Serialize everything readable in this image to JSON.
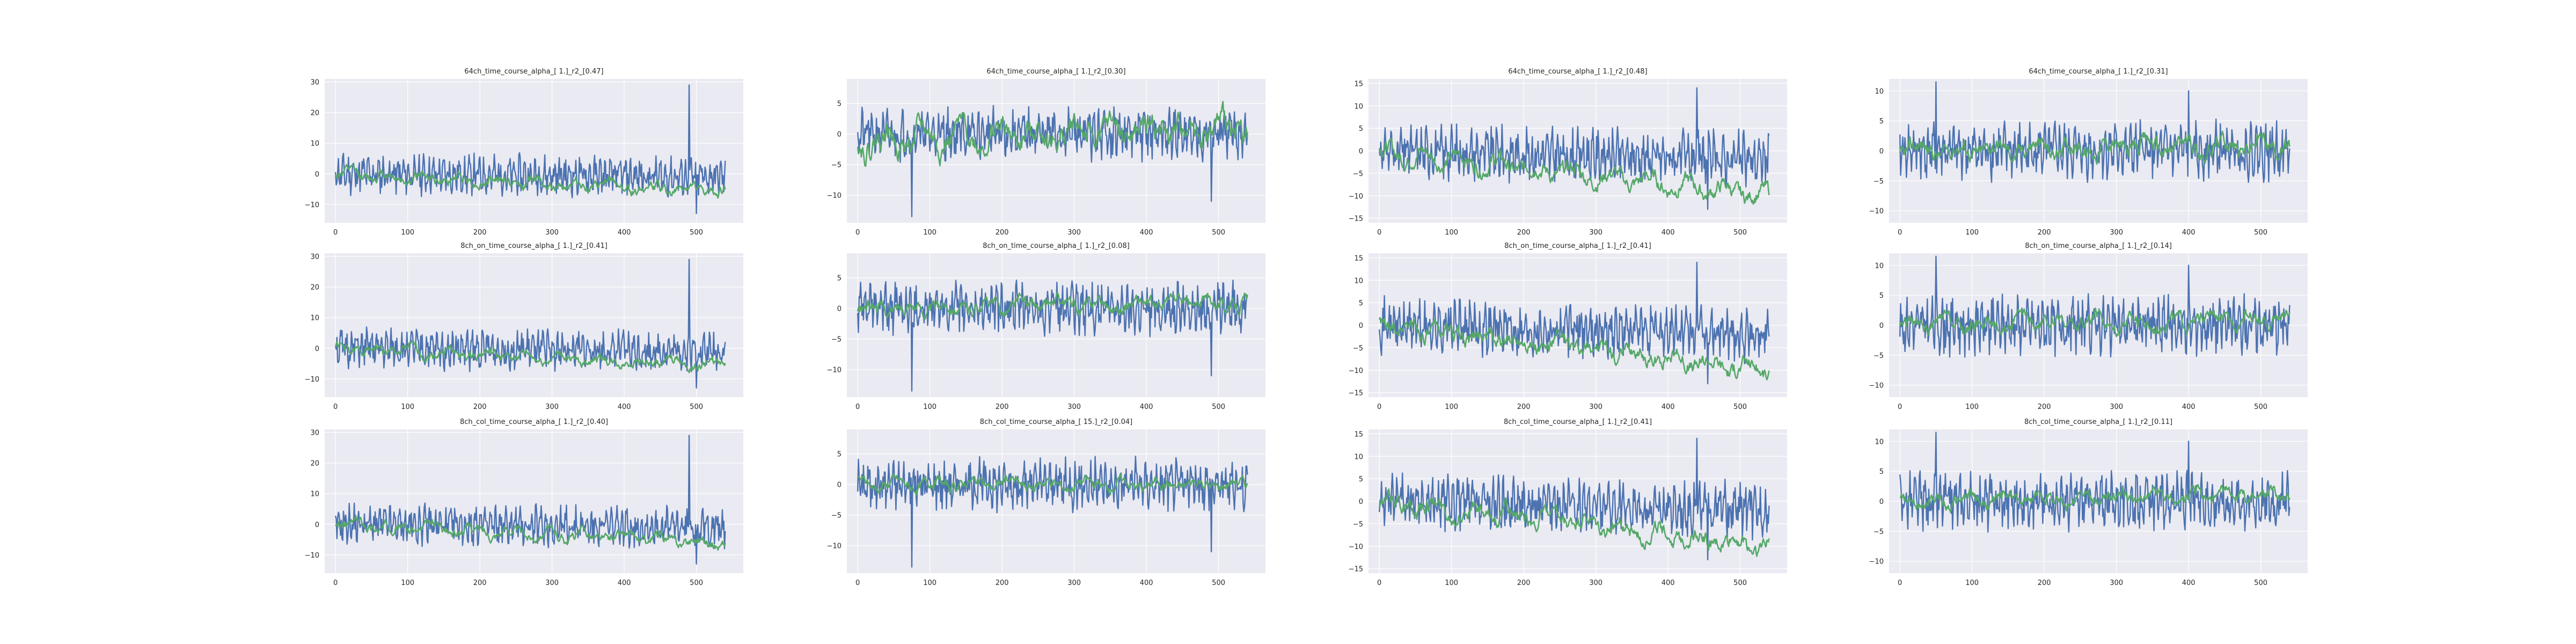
{
  "style": {
    "panel_bg": "#EAEAF2",
    "grid": "#FFFFFF",
    "series_blue": "#4C72B0",
    "series_green": "#55A868",
    "text": "#262626"
  },
  "chart_data": [
    {
      "type": "line",
      "title": "64ch_time_course_alpha_[ 1.]_r2_[0.47]",
      "xlim": [
        -15,
        565
      ],
      "ylim": [
        -16,
        31
      ],
      "xticks": [
        0,
        100,
        200,
        300,
        400,
        500
      ],
      "yticks": [
        -10,
        0,
        10,
        20,
        30
      ],
      "series": [
        {
          "color": "blue",
          "amp": 5.5,
          "trend": [
            0,
            -1
          ],
          "seed": 11,
          "spikes": [
            [
              490,
              29
            ],
            [
              500,
              -13
            ]
          ]
        },
        {
          "color": "green",
          "amp": 1.8,
          "trend": [
            0,
            -6
          ],
          "seed": 12
        }
      ],
      "grid": true
    },
    {
      "type": "line",
      "title": "64ch_time_course_alpha_[ 1.]_r2_[0.30]",
      "xlim": [
        -15,
        565
      ],
      "ylim": [
        -14.5,
        9
      ],
      "xticks": [
        0,
        100,
        200,
        300,
        400,
        500
      ],
      "yticks": [
        -10,
        -5,
        0,
        5
      ],
      "series": [
        {
          "color": "blue",
          "amp": 3.5,
          "trend": [
            0,
            0
          ],
          "seed": 21,
          "spikes": [
            [
              75,
              -13.5
            ],
            [
              490,
              -11
            ]
          ]
        },
        {
          "color": "green",
          "amp": 2.2,
          "trend": [
            -1,
            1
          ],
          "seed": 22
        }
      ],
      "grid": true
    },
    {
      "type": "line",
      "title": "64ch_time_course_alpha_[ 1.]_r2_[0.48]",
      "xlim": [
        -15,
        565
      ],
      "ylim": [
        -16,
        16
      ],
      "xticks": [
        0,
        100,
        200,
        300,
        400,
        500
      ],
      "yticks": [
        -15,
        -10,
        -5,
        0,
        5,
        10,
        15
      ],
      "series": [
        {
          "color": "blue",
          "amp": 5.0,
          "trend": [
            0,
            -2
          ],
          "seed": 31,
          "spikes": [
            [
              440,
              14
            ],
            [
              455,
              -13
            ]
          ]
        },
        {
          "color": "green",
          "amp": 2.0,
          "trend": [
            0,
            -10
          ],
          "seed": 32
        }
      ],
      "grid": true
    },
    {
      "type": "line",
      "title": "64ch_time_course_alpha_[ 1.]_r2_[0.31]",
      "xlim": [
        -15,
        565
      ],
      "ylim": [
        -12,
        12
      ],
      "xticks": [
        0,
        100,
        200,
        300,
        400,
        500
      ],
      "yticks": [
        -10,
        -5,
        0,
        5,
        10
      ],
      "series": [
        {
          "color": "blue",
          "amp": 4.0,
          "trend": [
            0,
            0
          ],
          "seed": 41,
          "spikes": [
            [
              50,
              11.5
            ],
            [
              400,
              10
            ]
          ]
        },
        {
          "color": "green",
          "amp": 1.6,
          "trend": [
            0,
            1
          ],
          "seed": 42
        }
      ],
      "grid": true
    },
    {
      "type": "line",
      "title": "8ch_on_time_course_alpha_[ 1.]_r2_[0.41]",
      "xlim": [
        -15,
        565
      ],
      "ylim": [
        -16,
        31
      ],
      "xticks": [
        0,
        100,
        200,
        300,
        400,
        500
      ],
      "yticks": [
        -10,
        0,
        10,
        20,
        30
      ],
      "series": [
        {
          "color": "blue",
          "amp": 5.5,
          "trend": [
            0,
            -1
          ],
          "seed": 51,
          "spikes": [
            [
              490,
              29
            ],
            [
              500,
              -13
            ]
          ]
        },
        {
          "color": "green",
          "amp": 1.8,
          "trend": [
            0,
            -6
          ],
          "seed": 52
        }
      ],
      "grid": true
    },
    {
      "type": "line",
      "title": "8ch_on_time_course_alpha_[ 1.]_r2_[0.08]",
      "xlim": [
        -15,
        565
      ],
      "ylim": [
        -14.5,
        9
      ],
      "xticks": [
        0,
        100,
        200,
        300,
        400,
        500
      ],
      "yticks": [
        -10,
        -5,
        0,
        5
      ],
      "series": [
        {
          "color": "blue",
          "amp": 3.5,
          "trend": [
            0,
            0
          ],
          "seed": 61,
          "spikes": [
            [
              75,
              -13.5
            ],
            [
              490,
              -11
            ]
          ]
        },
        {
          "color": "green",
          "amp": 1.2,
          "trend": [
            0,
            1
          ],
          "seed": 62
        }
      ],
      "grid": true
    },
    {
      "type": "line",
      "title": "8ch_on_time_course_alpha_[ 1.]_r2_[0.41]",
      "xlim": [
        -15,
        565
      ],
      "ylim": [
        -16,
        16
      ],
      "xticks": [
        0,
        100,
        200,
        300,
        400,
        500
      ],
      "yticks": [
        -15,
        -10,
        -5,
        0,
        5,
        10,
        15
      ],
      "series": [
        {
          "color": "blue",
          "amp": 5.0,
          "trend": [
            0,
            -2
          ],
          "seed": 71,
          "spikes": [
            [
              440,
              14
            ],
            [
              455,
              -13
            ]
          ]
        },
        {
          "color": "green",
          "amp": 2.0,
          "trend": [
            0,
            -10
          ],
          "seed": 72
        }
      ],
      "grid": true
    },
    {
      "type": "line",
      "title": "8ch_on_time_course_alpha_[ 1.]_r2_[0.14]",
      "xlim": [
        -15,
        565
      ],
      "ylim": [
        -12,
        12
      ],
      "xticks": [
        0,
        100,
        200,
        300,
        400,
        500
      ],
      "yticks": [
        -10,
        -5,
        0,
        5,
        10
      ],
      "series": [
        {
          "color": "blue",
          "amp": 4.0,
          "trend": [
            0,
            0
          ],
          "seed": 81,
          "spikes": [
            [
              50,
              11.5
            ],
            [
              400,
              10
            ]
          ]
        },
        {
          "color": "green",
          "amp": 1.3,
          "trend": [
            0,
            1
          ],
          "seed": 82
        }
      ],
      "grid": true
    },
    {
      "type": "line",
      "title": "8ch_col_time_course_alpha_[ 1.]_r2_[0.40]",
      "xlim": [
        -15,
        565
      ],
      "ylim": [
        -16,
        31
      ],
      "xticks": [
        0,
        100,
        200,
        300,
        400,
        500
      ],
      "yticks": [
        -10,
        0,
        10,
        20,
        30
      ],
      "series": [
        {
          "color": "blue",
          "amp": 5.5,
          "trend": [
            0,
            -1
          ],
          "seed": 91,
          "spikes": [
            [
              490,
              29
            ],
            [
              500,
              -13
            ]
          ]
        },
        {
          "color": "green",
          "amp": 1.8,
          "trend": [
            0,
            -6
          ],
          "seed": 92
        }
      ],
      "grid": true
    },
    {
      "type": "line",
      "title": "8ch_col_time_course_alpha_[ 15.]_r2_[0.04]",
      "xlim": [
        -15,
        565
      ],
      "ylim": [
        -14.5,
        9
      ],
      "xticks": [
        0,
        100,
        200,
        300,
        400,
        500
      ],
      "yticks": [
        -10,
        -5,
        0,
        5
      ],
      "series": [
        {
          "color": "blue",
          "amp": 3.5,
          "trend": [
            0,
            0
          ],
          "seed": 101,
          "spikes": [
            [
              75,
              -13.5
            ],
            [
              490,
              -11
            ]
          ]
        },
        {
          "color": "green",
          "amp": 1.0,
          "trend": [
            0,
            0
          ],
          "seed": 102
        }
      ],
      "grid": true
    },
    {
      "type": "line",
      "title": "8ch_col_time_course_alpha_[ 1.]_r2_[0.41]",
      "xlim": [
        -15,
        565
      ],
      "ylim": [
        -16,
        16
      ],
      "xticks": [
        0,
        100,
        200,
        300,
        400,
        500
      ],
      "yticks": [
        -15,
        -10,
        -5,
        0,
        5,
        10,
        15
      ],
      "series": [
        {
          "color": "blue",
          "amp": 5.0,
          "trend": [
            0,
            -2
          ],
          "seed": 111,
          "spikes": [
            [
              440,
              14
            ],
            [
              455,
              -13
            ]
          ]
        },
        {
          "color": "green",
          "amp": 2.0,
          "trend": [
            0,
            -10
          ],
          "seed": 112
        }
      ],
      "grid": true
    },
    {
      "type": "line",
      "title": "8ch_col_time_course_alpha_[ 1.]_r2_[0.11]",
      "xlim": [
        -15,
        565
      ],
      "ylim": [
        -12,
        12
      ],
      "xticks": [
        0,
        100,
        200,
        300,
        400,
        500
      ],
      "yticks": [
        -10,
        -5,
        0,
        5,
        10
      ],
      "series": [
        {
          "color": "blue",
          "amp": 4.0,
          "trend": [
            0,
            0
          ],
          "seed": 121,
          "spikes": [
            [
              50,
              11.5
            ],
            [
              400,
              10
            ]
          ]
        },
        {
          "color": "green",
          "amp": 1.2,
          "trend": [
            0,
            1
          ],
          "seed": 122
        }
      ],
      "grid": true
    }
  ]
}
